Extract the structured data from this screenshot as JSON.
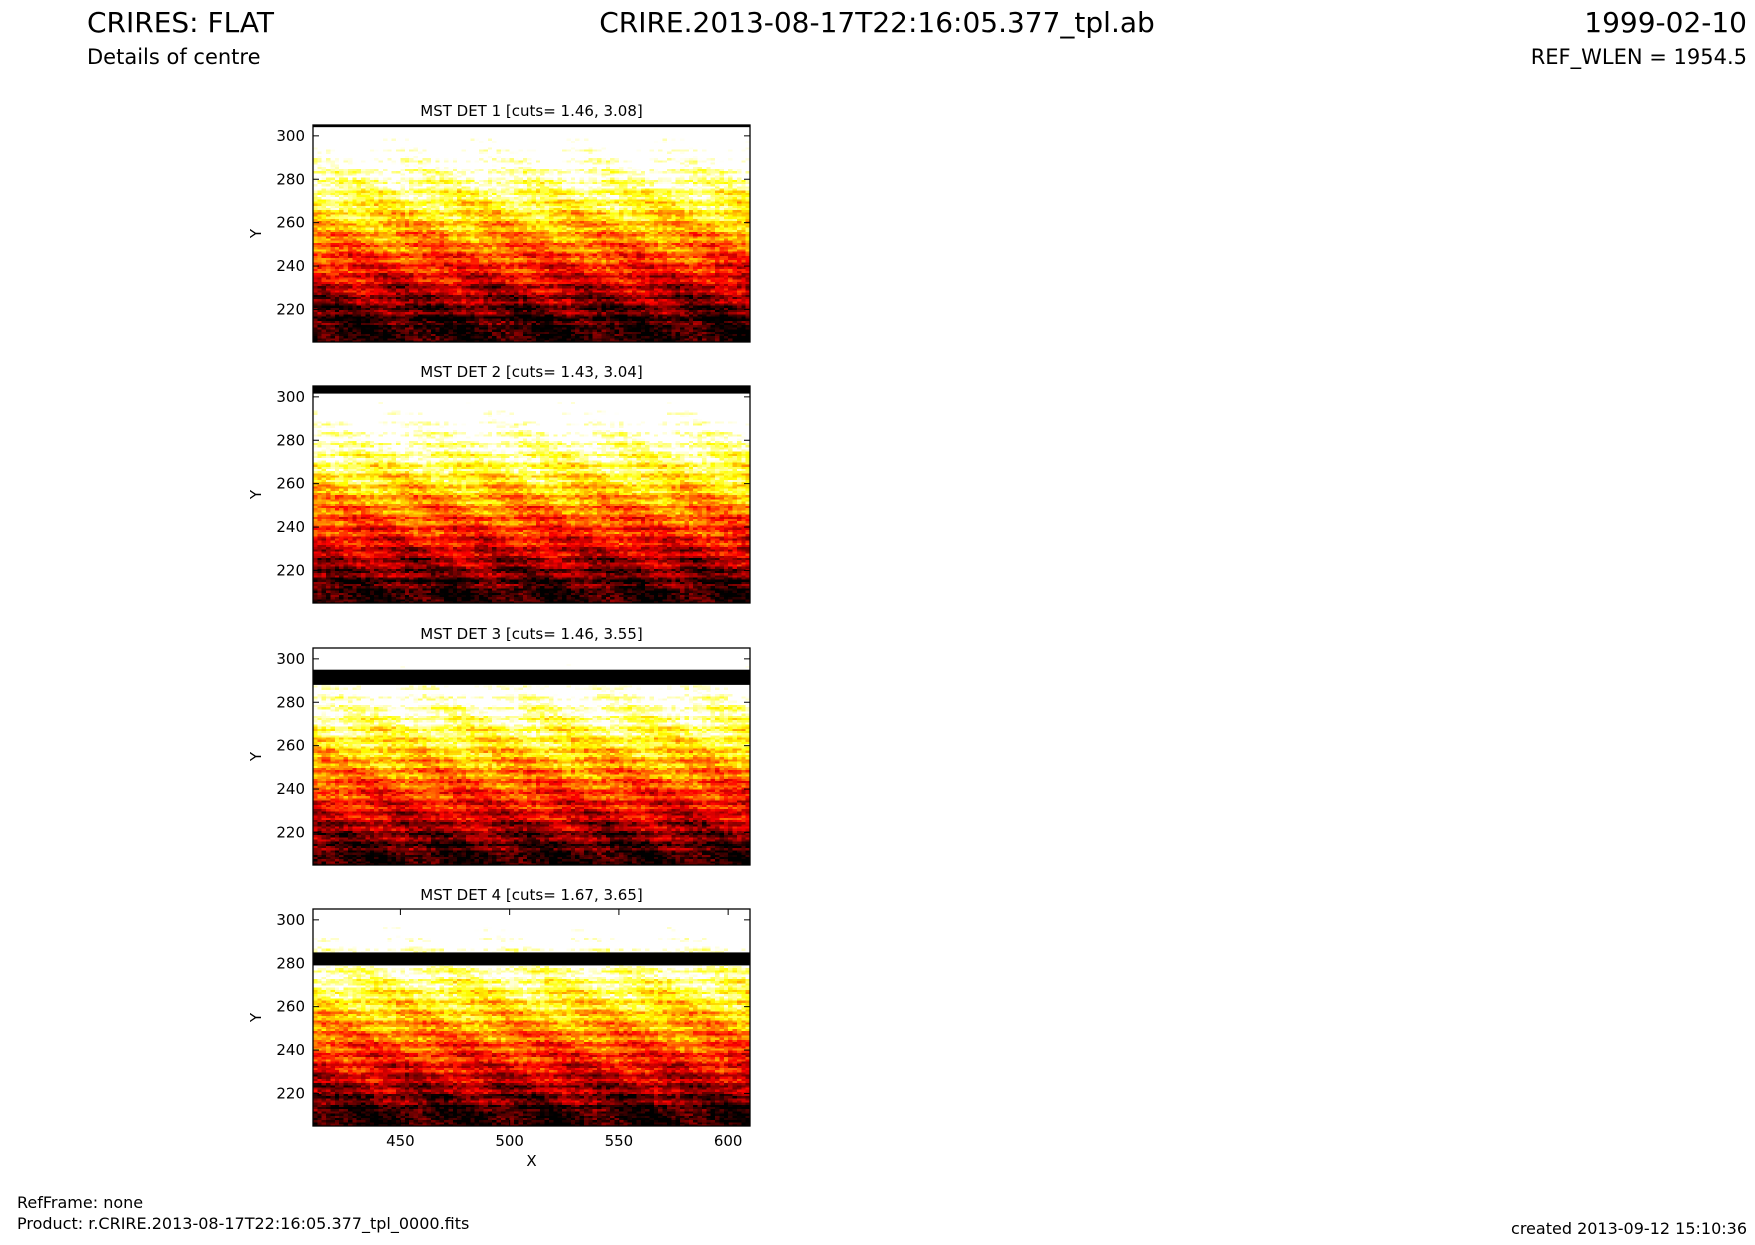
{
  "header": {
    "left_title": "CRIRES: FLAT",
    "left_subtitle": "Details of centre",
    "center_title": "CRIRE.2013-08-17T22:16:05.377_tpl.ab",
    "right_title": "1999-02-10",
    "right_subtitle": "REF_WLEN = 1954.5"
  },
  "footer": {
    "refframe": "RefFrame: none",
    "product": "Product: r.CRIRE.2013-08-17T22:16:05.377_tpl_0000.fits",
    "created": "created 2013-09-12 15:10:36"
  },
  "chart_data": [
    {
      "type": "heatmap",
      "title": "MST DET 1 [cuts= 1.46, 3.08]",
      "xlabel": "",
      "ylabel": "Y",
      "xlim": [
        410,
        610
      ],
      "ylim": [
        205,
        305
      ],
      "yticks": [
        220,
        240,
        260,
        280,
        300
      ],
      "xticks": [],
      "colormap": "hot",
      "cuts": [
        1.46,
        3.08
      ],
      "dead_rows": [
        [
          304,
          305
        ]
      ]
    },
    {
      "type": "heatmap",
      "title": "MST DET 2 [cuts= 1.43, 3.04]",
      "xlabel": "",
      "ylabel": "Y",
      "xlim": [
        410,
        610
      ],
      "ylim": [
        205,
        305
      ],
      "yticks": [
        220,
        240,
        260,
        280,
        300
      ],
      "xticks": [],
      "colormap": "hot",
      "cuts": [
        1.43,
        3.04
      ],
      "dead_rows": [
        [
          301.5,
          305
        ]
      ]
    },
    {
      "type": "heatmap",
      "title": "MST DET 3 [cuts= 1.46, 3.55]",
      "xlabel": "",
      "ylabel": "Y",
      "xlim": [
        410,
        610
      ],
      "ylim": [
        205,
        305
      ],
      "yticks": [
        220,
        240,
        260,
        280,
        300
      ],
      "xticks": [],
      "colormap": "hot",
      "cuts": [
        1.46,
        3.55
      ],
      "dead_rows": [
        [
          288,
          295
        ]
      ]
    },
    {
      "type": "heatmap",
      "title": "MST DET 4 [cuts= 1.67, 3.65]",
      "xlabel": "X",
      "ylabel": "Y",
      "xlim": [
        410,
        610
      ],
      "ylim": [
        205,
        305
      ],
      "yticks": [
        220,
        240,
        260,
        280,
        300
      ],
      "xticks": [
        450,
        500,
        550,
        600
      ],
      "colormap": "hot",
      "cuts": [
        1.67,
        3.65
      ],
      "dead_rows": [
        [
          279,
          285
        ]
      ]
    }
  ]
}
